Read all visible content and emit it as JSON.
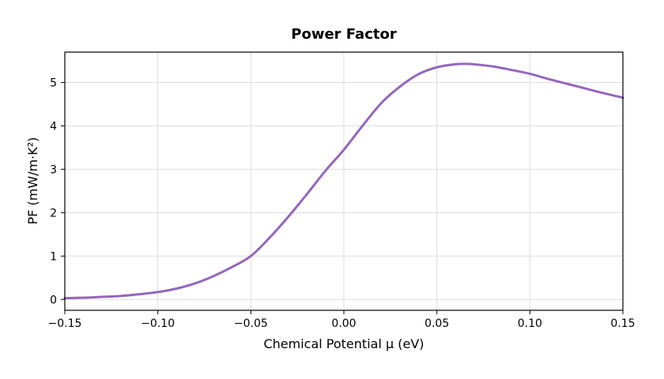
{
  "chart_data": {
    "type": "line",
    "title": "Power Factor",
    "xlabel": "Chemical Potential μ (eV)",
    "ylabel": "PF (mW/m·K²)",
    "xlim": [
      -0.15,
      0.15
    ],
    "ylim": [
      -0.25,
      5.7
    ],
    "xticks": [
      -0.15,
      -0.1,
      -0.05,
      0.0,
      0.05,
      0.1,
      0.15
    ],
    "xtick_labels": [
      "−0.15",
      "−0.10",
      "−0.05",
      "0.00",
      "0.05",
      "0.10",
      "0.15"
    ],
    "yticks": [
      0,
      1,
      2,
      3,
      4,
      5
    ],
    "ytick_labels": [
      "0",
      "1",
      "2",
      "3",
      "4",
      "5"
    ],
    "grid": true,
    "series": [
      {
        "color": "#9467bd",
        "x": [
          -0.15,
          -0.14,
          -0.13,
          -0.12,
          -0.11,
          -0.1,
          -0.09,
          -0.08,
          -0.07,
          -0.06,
          -0.05,
          -0.04,
          -0.03,
          -0.02,
          -0.01,
          0.0,
          0.01,
          0.02,
          0.03,
          0.04,
          0.05,
          0.06,
          0.066,
          0.07,
          0.08,
          0.09,
          0.1,
          0.11,
          0.12,
          0.13,
          0.14,
          0.15
        ],
        "y": [
          0.03,
          0.04,
          0.06,
          0.08,
          0.12,
          0.17,
          0.25,
          0.37,
          0.54,
          0.75,
          1.0,
          1.42,
          1.9,
          2.42,
          2.96,
          3.45,
          4.0,
          4.52,
          4.9,
          5.19,
          5.35,
          5.42,
          5.43,
          5.42,
          5.37,
          5.29,
          5.2,
          5.08,
          4.97,
          4.86,
          4.75,
          4.65
        ]
      }
    ]
  }
}
